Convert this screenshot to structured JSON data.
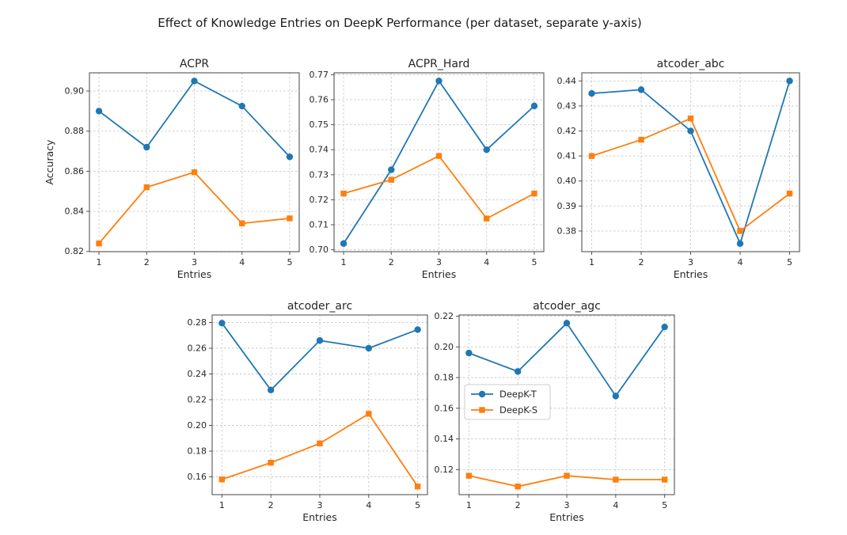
{
  "figure": {
    "title": "Effect of Knowledge Entries on DeepK Performance (per dataset, separate y-axis)",
    "background": "#ffffff",
    "xlabel": "Entries",
    "ylabel": "Accuracy",
    "x_ticks": [
      1,
      2,
      3,
      4,
      5
    ],
    "xlim": [
      0.8,
      5.2
    ],
    "colors": {
      "deepk_t": "#1f77b4",
      "deepk_s": "#ff7f0e",
      "grid": "#c9c9c9",
      "spine": "#555555",
      "text": "#262626",
      "legend_border": "#cccccc"
    },
    "series_meta": [
      {
        "name": "DeepK-T",
        "color": "#1f77b4",
        "marker": "circle"
      },
      {
        "name": "DeepK-S",
        "color": "#ff7f0e",
        "marker": "square"
      }
    ],
    "legend": {
      "labels": [
        "DeepK-T",
        "DeepK-S"
      ]
    }
  },
  "chart_data": [
    {
      "type": "line",
      "title": "ACPR",
      "xlabel": "Entries",
      "ylabel": "Accuracy",
      "x": [
        1,
        2,
        3,
        4,
        5
      ],
      "series": [
        {
          "name": "DeepK-T",
          "values": [
            0.89,
            0.872,
            0.905,
            0.8925,
            0.8672
          ]
        },
        {
          "name": "DeepK-S",
          "values": [
            0.824,
            0.852,
            0.8595,
            0.834,
            0.8365
          ]
        }
      ],
      "yticks": [
        0.82,
        0.84,
        0.86,
        0.88,
        0.9
      ],
      "ylim": [
        0.8199,
        0.9091
      ],
      "grid": true,
      "legend": false
    },
    {
      "type": "line",
      "title": "ACPR_Hard",
      "xlabel": "Entries",
      "ylabel": "",
      "x": [
        1,
        2,
        3,
        4,
        5
      ],
      "series": [
        {
          "name": "DeepK-T",
          "values": [
            0.7025,
            0.732,
            0.7675,
            0.74,
            0.7575
          ]
        },
        {
          "name": "DeepK-S",
          "values": [
            0.7225,
            0.728,
            0.7375,
            0.7125,
            0.7225
          ]
        }
      ],
      "yticks": [
        0.7,
        0.71,
        0.72,
        0.73,
        0.74,
        0.75,
        0.76,
        0.77
      ],
      "ylim": [
        0.69925,
        0.77075
      ],
      "grid": true,
      "legend": false
    },
    {
      "type": "line",
      "title": "atcoder_abc",
      "xlabel": "Entries",
      "ylabel": "",
      "x": [
        1,
        2,
        3,
        4,
        5
      ],
      "series": [
        {
          "name": "DeepK-T",
          "values": [
            0.435,
            0.4365,
            0.42,
            0.375,
            0.44
          ]
        },
        {
          "name": "DeepK-S",
          "values": [
            0.41,
            0.4165,
            0.425,
            0.38,
            0.395
          ]
        }
      ],
      "yticks": [
        0.38,
        0.39,
        0.4,
        0.41,
        0.42,
        0.43,
        0.44
      ],
      "ylim": [
        0.37175,
        0.44325
      ],
      "grid": true,
      "legend": false
    },
    {
      "type": "line",
      "title": "atcoder_arc",
      "xlabel": "Entries",
      "ylabel": "",
      "x": [
        1,
        2,
        3,
        4,
        5
      ],
      "series": [
        {
          "name": "DeepK-T",
          "values": [
            0.2795,
            0.2275,
            0.266,
            0.26,
            0.2745
          ]
        },
        {
          "name": "DeepK-S",
          "values": [
            0.158,
            0.171,
            0.186,
            0.209,
            0.1525
          ]
        }
      ],
      "yticks": [
        0.16,
        0.18,
        0.2,
        0.22,
        0.24,
        0.26,
        0.28
      ],
      "ylim": [
        0.14615,
        0.28585
      ],
      "grid": true,
      "legend": false
    },
    {
      "type": "line",
      "title": "atcoder_agc",
      "xlabel": "Entries",
      "ylabel": "",
      "x": [
        1,
        2,
        3,
        4,
        5
      ],
      "series": [
        {
          "name": "DeepK-T",
          "values": [
            0.196,
            0.184,
            0.2155,
            0.168,
            0.213
          ]
        },
        {
          "name": "DeepK-S",
          "values": [
            0.116,
            0.109,
            0.116,
            0.1135,
            0.1135
          ]
        }
      ],
      "yticks": [
        0.12,
        0.14,
        0.16,
        0.18,
        0.2,
        0.22
      ],
      "ylim": [
        0.10368,
        0.22083
      ],
      "grid": true,
      "legend": true
    }
  ]
}
